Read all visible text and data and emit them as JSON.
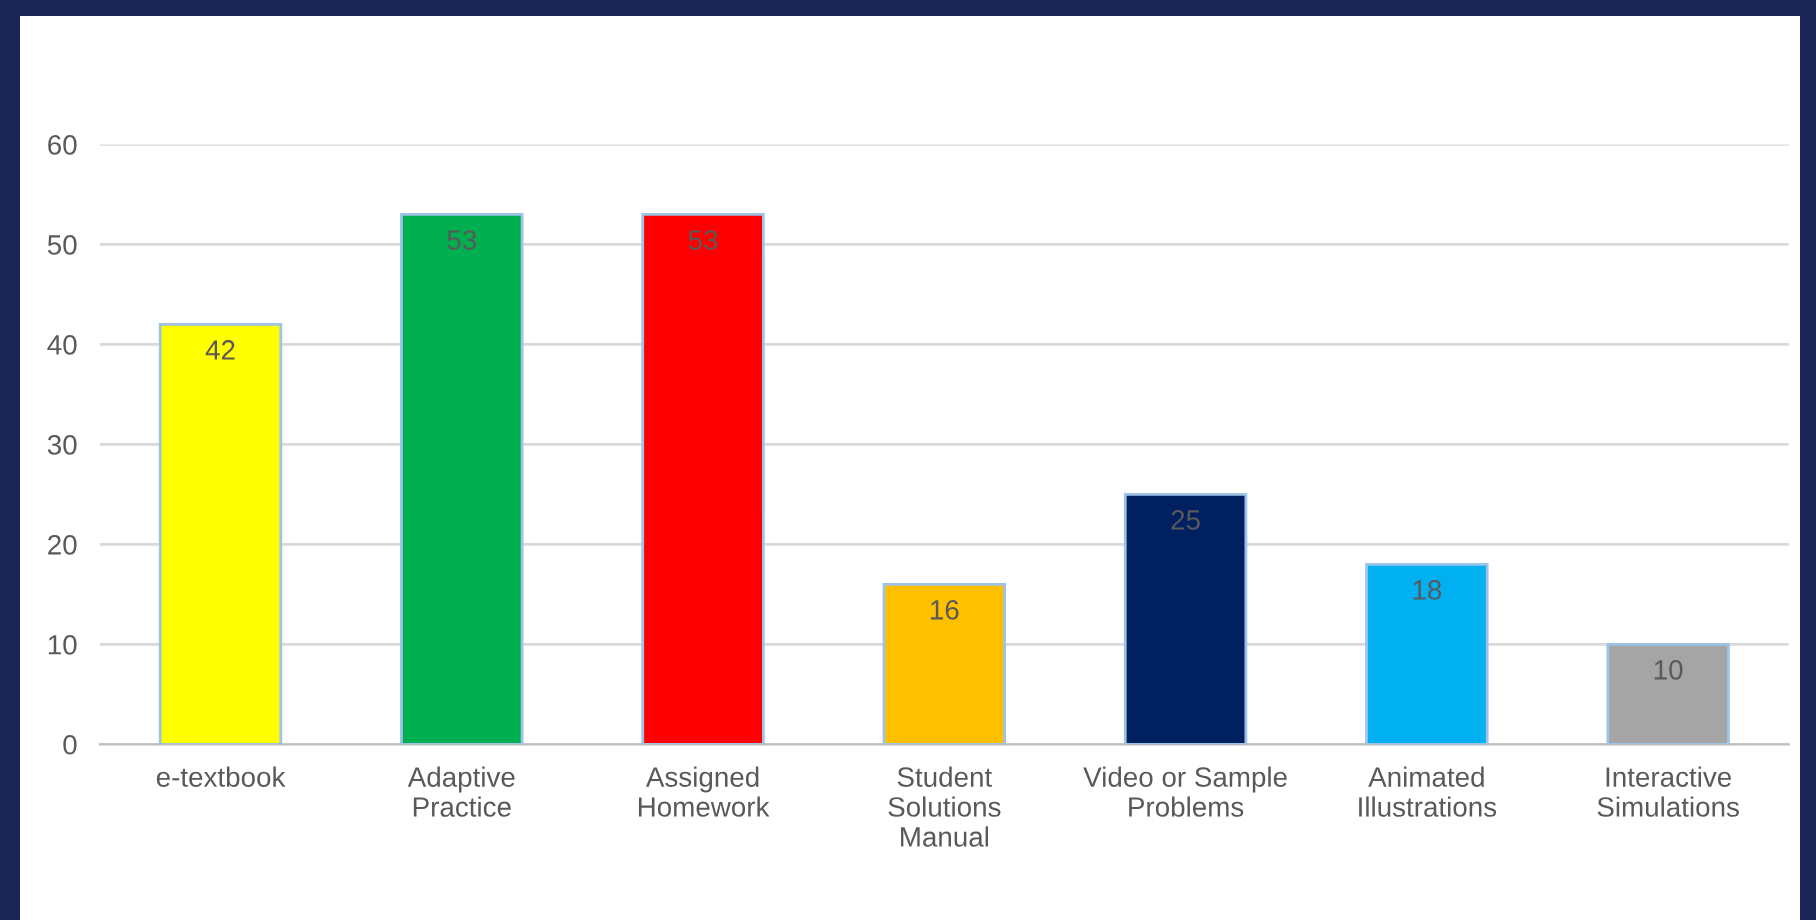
{
  "chart_data": {
    "type": "bar",
    "categories": [
      "e-textbook",
      "Adaptive\nPractice",
      "Assigned\nHomework",
      "Student\nSolutions\nManual",
      "Video or Sample\nProblems",
      "Animated\nIllustrations",
      "Interactive\nSimulations"
    ],
    "values": [
      42,
      53,
      53,
      16,
      25,
      18,
      10
    ],
    "colors": [
      "#ffff00",
      "#00b050",
      "#ff0000",
      "#ffc000",
      "#002060",
      "#00b0f0",
      "#a5a5a5"
    ],
    "ylim": [
      0,
      60
    ],
    "yticks": [
      0,
      10,
      20,
      30,
      40,
      50,
      60
    ],
    "grid": "y",
    "data_labels": true
  }
}
